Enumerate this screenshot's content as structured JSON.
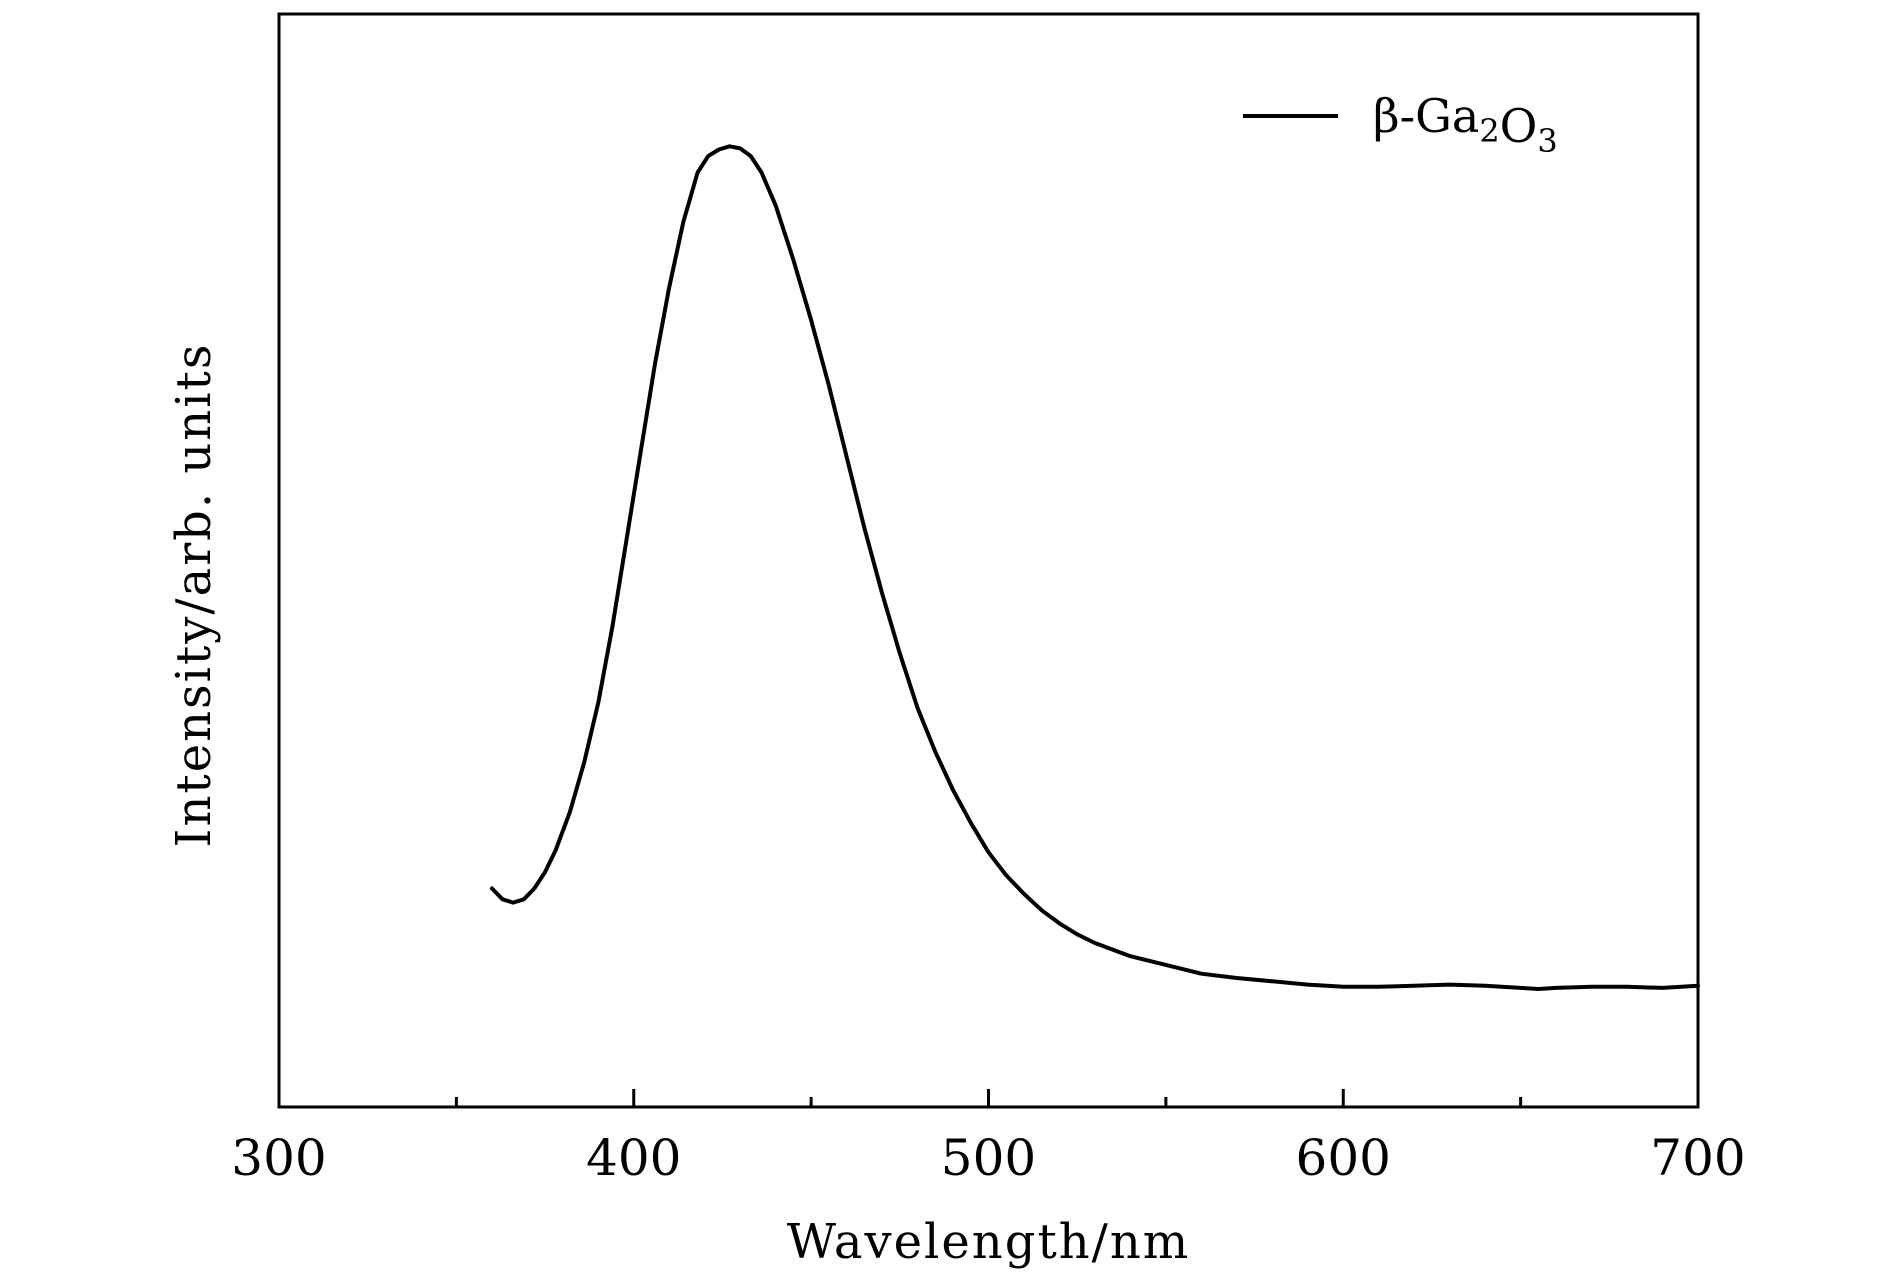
{
  "chart_data": {
    "type": "line",
    "xlabel": "Wavelength/nm",
    "ylabel": "Intensity/arb. units",
    "xlim": [
      300,
      700
    ],
    "ylim": [
      0,
      1.0
    ],
    "x_ticks": [
      300,
      400,
      500,
      600,
      700
    ],
    "x_minor_ticks": [
      350,
      450,
      550,
      650
    ],
    "y_ticks_labeled": false,
    "grid": false,
    "legend": {
      "position": "top-right",
      "entries": [
        "β-Ga2O3"
      ]
    },
    "series": [
      {
        "name": "β-Ga2O3",
        "color": "#000000",
        "x": [
          360,
          363,
          366,
          369,
          372,
          375,
          378,
          382,
          386,
          390,
          394,
          398,
          402,
          406,
          410,
          414,
          418,
          421,
          424,
          427,
          430,
          433,
          436,
          440,
          445,
          450,
          455,
          460,
          465,
          470,
          475,
          480,
          485,
          490,
          495,
          500,
          505,
          510,
          515,
          520,
          525,
          530,
          540,
          550,
          560,
          570,
          580,
          590,
          600,
          610,
          620,
          630,
          640,
          650,
          655,
          660,
          670,
          680,
          690,
          700
        ],
        "y": [
          0.2,
          0.19,
          0.187,
          0.19,
          0.2,
          0.215,
          0.235,
          0.27,
          0.315,
          0.37,
          0.44,
          0.52,
          0.6,
          0.68,
          0.75,
          0.81,
          0.855,
          0.87,
          0.876,
          0.879,
          0.877,
          0.87,
          0.855,
          0.825,
          0.775,
          0.72,
          0.66,
          0.595,
          0.53,
          0.47,
          0.415,
          0.365,
          0.325,
          0.29,
          0.26,
          0.233,
          0.212,
          0.195,
          0.18,
          0.168,
          0.158,
          0.15,
          0.138,
          0.13,
          0.122,
          0.118,
          0.115,
          0.112,
          0.11,
          0.11,
          0.111,
          0.112,
          0.111,
          0.109,
          0.108,
          0.109,
          0.11,
          0.11,
          0.109,
          0.111
        ]
      }
    ]
  }
}
